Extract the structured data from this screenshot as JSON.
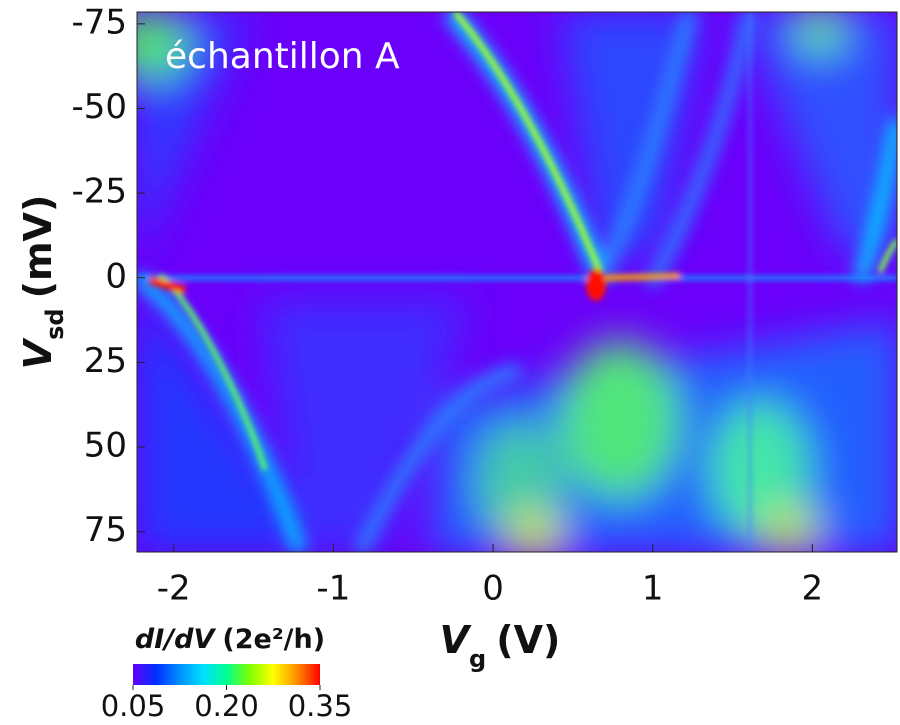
{
  "chart_data": {
    "type": "heatmap",
    "annotation": "échantillon A",
    "x_label": {
      "symbol": "V",
      "subscript": "g",
      "unit": "(V)"
    },
    "y_label": {
      "symbol": "V",
      "subscript": "sd",
      "unit": "(mV)"
    },
    "xlim": [
      -2.23,
      2.53
    ],
    "xticks": [
      -2,
      -1,
      0,
      1,
      2
    ],
    "ylim": [
      81,
      -78.5
    ],
    "yticks": [
      -75,
      -50,
      -25,
      0,
      25,
      50,
      75
    ],
    "colorbar": {
      "label": {
        "quantity": "dI/dV",
        "unit": "(2e²/h)"
      },
      "lim": [
        0.05,
        0.35
      ],
      "ticks": [
        0.05,
        {
          "value": 0.2,
          "label": "0.20"
        },
        0.35
      ],
      "colors": [
        "#6000ff",
        "#0030ff",
        "#0090ff",
        "#00e0ff",
        "#00ff90",
        "#80ff00",
        "#ffff00",
        "#ff9000",
        "#ff0000"
      ]
    }
  }
}
